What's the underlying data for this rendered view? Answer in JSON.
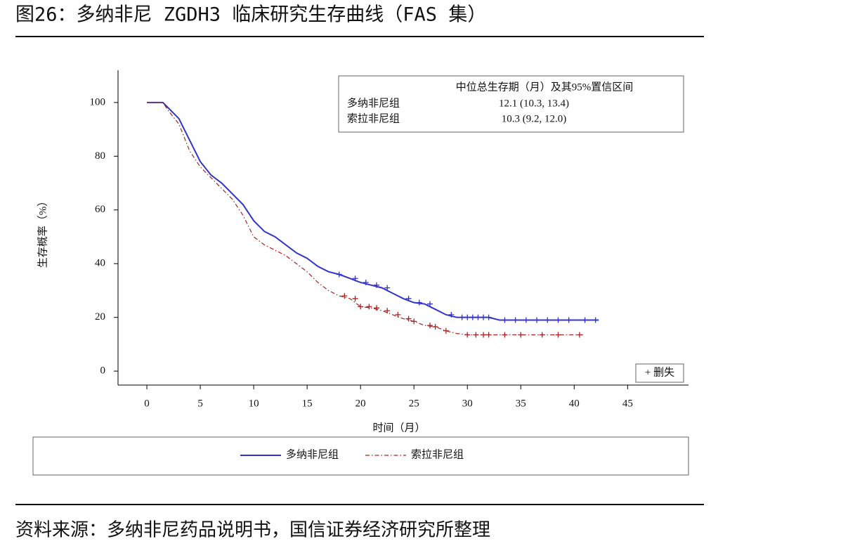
{
  "chart_data": {
    "type": "line",
    "title": "图26：多纳非尼 ZGDH3 临床研究生存曲线（FAS 集）",
    "x_label": "时间（月）",
    "y_label": "生存概率（%）",
    "xlim": [
      -2.7,
      50.7
    ],
    "ylim": [
      -5.2,
      112
    ],
    "xticks": [
      0,
      5,
      10,
      15,
      20,
      25,
      30,
      35,
      40,
      45
    ],
    "yticks": [
      0,
      20,
      40,
      60,
      80,
      100
    ],
    "series": [
      {
        "name": "多纳非尼组",
        "color": "#3333cc",
        "x": [
          0,
          1.5,
          2,
          3,
          4,
          5,
          6,
          7,
          8,
          9,
          10,
          11,
          12,
          13,
          14,
          15,
          16,
          17,
          18,
          19,
          20,
          21,
          22,
          23,
          24,
          25,
          26,
          27,
          28,
          29,
          30,
          31,
          32,
          33,
          35,
          40,
          42.3
        ],
        "values": [
          100,
          100,
          98,
          94,
          86,
          78,
          73,
          70,
          66,
          62,
          56,
          52,
          50,
          47,
          44,
          42,
          39,
          37,
          36,
          34.5,
          33,
          32,
          31,
          29,
          27,
          25.5,
          25,
          23,
          21,
          20,
          20,
          20,
          20,
          19,
          19,
          19,
          19
        ],
        "censored": [
          18,
          19.5,
          20.5,
          21.5,
          22.5,
          24.5,
          25.5,
          26.5,
          28.5,
          29.5,
          30,
          30.5,
          31,
          31.5,
          32,
          33.5,
          34.5,
          35.5,
          36.5,
          37.5,
          38.5,
          39.5,
          41,
          42
        ]
      },
      {
        "name": "索拉非尼组",
        "color": "#aa2222",
        "x": [
          0,
          1.5,
          2,
          3,
          4,
          5,
          6,
          7,
          8,
          9,
          10,
          11,
          12,
          13,
          14,
          15,
          16,
          17,
          18,
          19,
          20,
          21,
          22,
          23,
          24,
          25,
          26,
          27,
          28,
          29,
          30,
          32,
          35,
          38,
          41
        ],
        "values": [
          100,
          100,
          97,
          92,
          82,
          76,
          72,
          68,
          64,
          58,
          50,
          47,
          45,
          43,
          40,
          37,
          33,
          30,
          28,
          27,
          24,
          23.5,
          22.5,
          21,
          19.5,
          18.5,
          17,
          16.5,
          15,
          14,
          13.5,
          13.5,
          13.5,
          13.5,
          13.5
        ],
        "censored": [
          18.5,
          19.5,
          20,
          20.8,
          21.5,
          22.5,
          23.5,
          24.5,
          25,
          26.5,
          27,
          28,
          30,
          30.8,
          31.5,
          32,
          33.5,
          35,
          37,
          38.5,
          40.5
        ]
      }
    ],
    "inset_table": {
      "header": "中位总生存期（月）及其95%置信区间",
      "rows": [
        [
          "多纳非尼组",
          "12.1 (10.3, 13.4)"
        ],
        [
          "索拉非尼组",
          "10.3 (9.2, 12.0)"
        ]
      ]
    },
    "censor_label": "+ 删失",
    "source": "资料来源：多纳非尼药品说明书，国信证券经济研究所整理"
  }
}
